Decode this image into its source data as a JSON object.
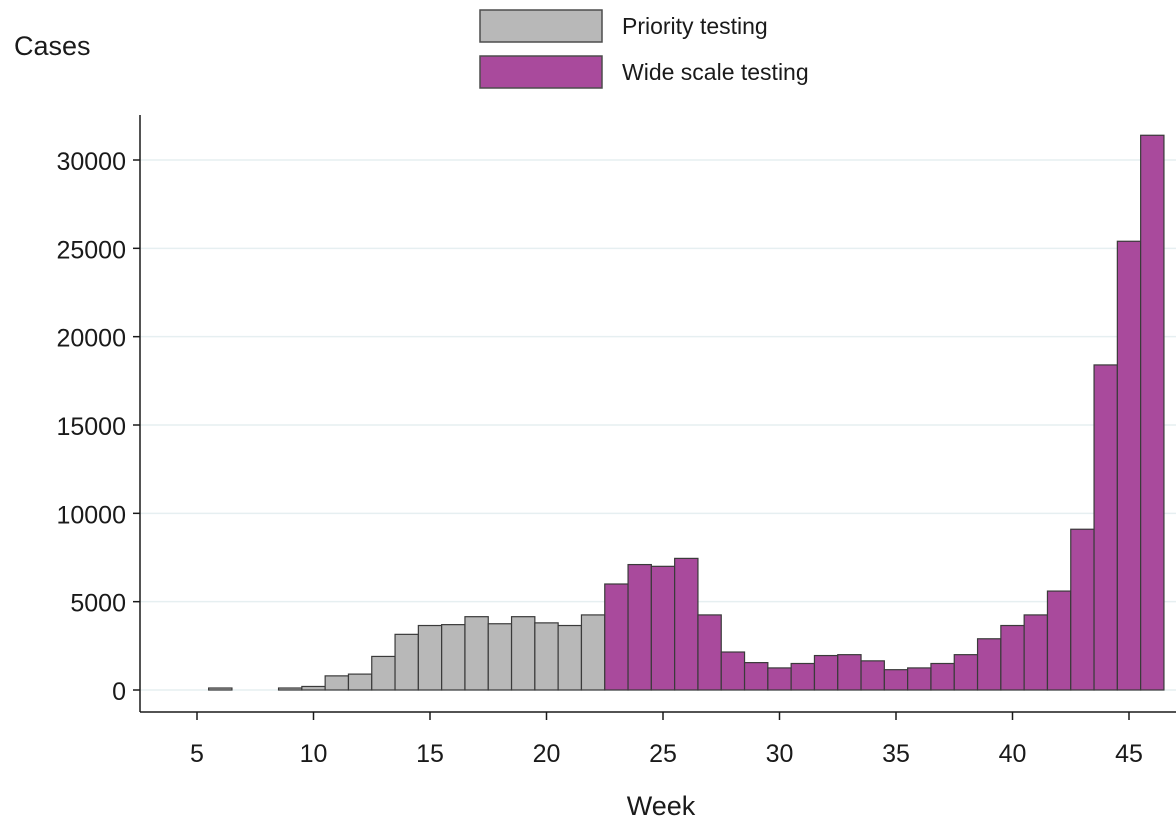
{
  "chart_data": {
    "type": "bar",
    "ylabel": "Cases",
    "xlabel": "Week",
    "ylim": [
      0,
      32000
    ],
    "xlim": [
      2.5,
      46.5
    ],
    "yticks": [
      0,
      5000,
      10000,
      15000,
      20000,
      25000,
      30000
    ],
    "xticks": [
      5,
      10,
      15,
      20,
      25,
      30,
      35,
      40,
      45
    ],
    "grid": "horizontal",
    "legend_position": "top-center",
    "series": [
      {
        "name": "Priority testing",
        "color": "#b8b8b8",
        "x": [
          6,
          9,
          10,
          11,
          12,
          13,
          14,
          15,
          16,
          17,
          18,
          19,
          20,
          21,
          22
        ],
        "values": [
          20,
          30,
          200,
          800,
          900,
          1900,
          3150,
          3650,
          3700,
          4150,
          3750,
          4150,
          3800,
          3650,
          4250
        ]
      },
      {
        "name": "Wide scale testing",
        "color": "#a94a9c",
        "x": [
          23,
          24,
          25,
          26,
          27,
          28,
          29,
          30,
          31,
          32,
          33,
          34,
          35,
          36,
          37,
          38,
          39,
          40,
          41,
          42,
          43,
          44,
          45,
          46
        ],
        "values": [
          6000,
          7100,
          7000,
          7450,
          4250,
          2150,
          1550,
          1250,
          1500,
          1950,
          2000,
          1650,
          1150,
          1250,
          1500,
          2000,
          2900,
          3650,
          4250,
          5600,
          9100,
          18400,
          25400,
          31400
        ]
      }
    ]
  }
}
